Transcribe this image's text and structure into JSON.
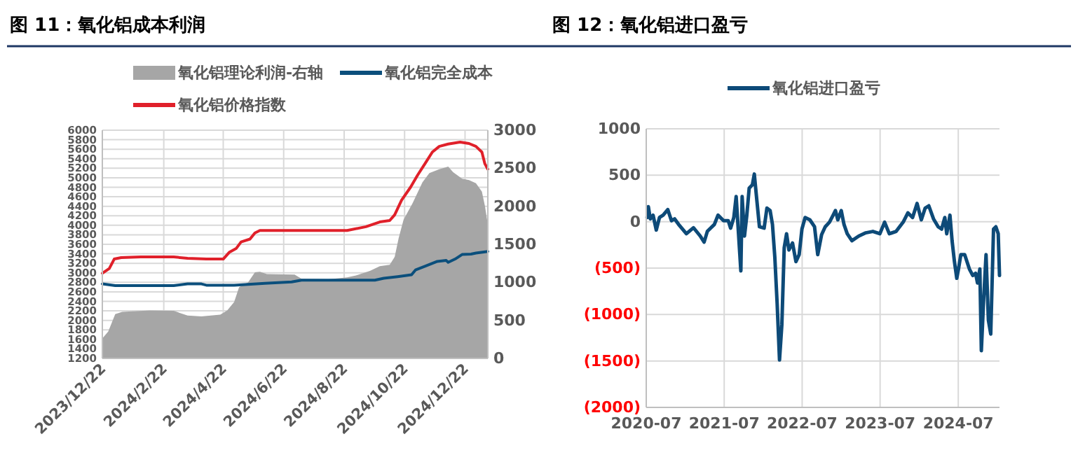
{
  "chart_data": [
    {
      "type": "line",
      "title": "图 11：氧化铝成本利润",
      "legend": "top",
      "grid": true,
      "xlim": [
        "2023-12-22",
        "2025-01-14"
      ],
      "xticks": [
        {
          "value": "2023-12-22",
          "label": "2023/12/22"
        },
        {
          "value": "2024-02-22",
          "label": "2024/2/22"
        },
        {
          "value": "2024-04-22",
          "label": "2024/4/22"
        },
        {
          "value": "2024-06-22",
          "label": "2024/6/22"
        },
        {
          "value": "2024-08-22",
          "label": "2024/8/22"
        },
        {
          "value": "2024-10-22",
          "label": "2024/10/22"
        },
        {
          "value": "2024-12-22",
          "label": "2024/12/22"
        }
      ],
      "ylim": [
        1200,
        6000
      ],
      "yticks": [
        1200,
        1400,
        1600,
        1800,
        2000,
        2200,
        2400,
        2600,
        2800,
        3000,
        3200,
        3400,
        3600,
        3800,
        4000,
        4200,
        4400,
        4600,
        4800,
        5000,
        5200,
        5400,
        5600,
        5800,
        6000
      ],
      "y2lim": [
        0,
        3000
      ],
      "y2ticks": [
        0,
        500,
        1000,
        1500,
        2000,
        2500,
        3000
      ],
      "series": [
        {
          "name": "氧化铝理论利润-右轴",
          "type": "area",
          "axis": "y2",
          "color": "#a6a6a6",
          "x": [
            "2023-12-22",
            "2023-12-28",
            "2024-01-04",
            "2024-01-11",
            "2024-02-08",
            "2024-03-03",
            "2024-03-17",
            "2024-03-31",
            "2024-04-19",
            "2024-04-26",
            "2024-05-03",
            "2024-05-08",
            "2024-05-17",
            "2024-05-24",
            "2024-05-29",
            "2024-06-05",
            "2024-07-03",
            "2024-07-10",
            "2024-08-06",
            "2024-08-25",
            "2024-09-03",
            "2024-09-17",
            "2024-09-27",
            "2024-10-07",
            "2024-10-12",
            "2024-10-16",
            "2024-10-21",
            "2024-10-30",
            "2024-11-09",
            "2024-11-16",
            "2024-11-26",
            "2024-12-05",
            "2024-12-10",
            "2024-12-19",
            "2024-12-26",
            "2025-01-02",
            "2025-01-08",
            "2025-01-11",
            "2025-01-14"
          ],
          "values": [
            263,
            355,
            582,
            612,
            630,
            625,
            563,
            551,
            576,
            630,
            740,
            937,
            998,
            1133,
            1139,
            1108,
            1102,
            1047,
            1041,
            1065,
            1090,
            1151,
            1212,
            1230,
            1335,
            1580,
            1825,
            2039,
            2314,
            2437,
            2486,
            2522,
            2449,
            2363,
            2345,
            2302,
            2192,
            2008,
            1763
          ]
        },
        {
          "name": "氧化铝完全成本",
          "color": "#0b4f7c",
          "x": [
            "2023-12-22",
            "2024-01-04",
            "2024-01-30",
            "2024-03-03",
            "2024-03-17",
            "2024-03-31",
            "2024-04-05",
            "2024-05-03",
            "2024-06-03",
            "2024-06-30",
            "2024-07-10",
            "2024-08-06",
            "2024-09-22",
            "2024-10-01",
            "2024-10-15",
            "2024-10-29",
            "2024-11-02",
            "2024-11-12",
            "2024-11-24",
            "2024-12-03",
            "2024-12-05",
            "2024-12-12",
            "2024-12-19",
            "2024-12-28",
            "2025-01-02",
            "2025-01-14"
          ],
          "values": [
            2767,
            2730,
            2730,
            2730,
            2767,
            2767,
            2740,
            2740,
            2780,
            2810,
            2845,
            2845,
            2845,
            2885,
            2920,
            2960,
            3060,
            3140,
            3240,
            3260,
            3220,
            3290,
            3385,
            3395,
            3415,
            3450
          ]
        },
        {
          "name": "氧化铝价格指数",
          "color": "#e0202a",
          "x": [
            "2023-12-22",
            "2023-12-29",
            "2024-01-03",
            "2024-01-10",
            "2024-01-30",
            "2024-03-03",
            "2024-03-17",
            "2024-04-05",
            "2024-04-22",
            "2024-04-28",
            "2024-05-05",
            "2024-05-10",
            "2024-05-19",
            "2024-05-24",
            "2024-05-29",
            "2024-06-19",
            "2024-08-06",
            "2024-08-25",
            "2024-09-13",
            "2024-09-27",
            "2024-10-07",
            "2024-10-12",
            "2024-10-19",
            "2024-10-28",
            "2024-11-04",
            "2024-11-12",
            "2024-11-19",
            "2024-11-26",
            "2024-12-05",
            "2024-12-17",
            "2024-12-26",
            "2025-01-02",
            "2025-01-08",
            "2025-01-11",
            "2025-01-14"
          ],
          "values": [
            2990,
            3090,
            3290,
            3320,
            3335,
            3335,
            3305,
            3290,
            3290,
            3430,
            3510,
            3650,
            3710,
            3840,
            3890,
            3890,
            3890,
            3890,
            3970,
            4070,
            4100,
            4220,
            4530,
            4800,
            5050,
            5310,
            5540,
            5660,
            5710,
            5750,
            5720,
            5660,
            5540,
            5295,
            5180
          ]
        }
      ]
    },
    {
      "type": "line",
      "title": "图 12：氧化铝进口盈亏",
      "legend": "top",
      "grid": true,
      "xlim": [
        "2020-07-01",
        "2025-01-10"
      ],
      "xticks": [
        {
          "value": "2020-07",
          "label": "2020-07"
        },
        {
          "value": "2021-07",
          "label": "2021-07"
        },
        {
          "value": "2022-07",
          "label": "2022-07"
        },
        {
          "value": "2023-07",
          "label": "2023-07"
        },
        {
          "value": "2024-07",
          "label": "2024-07"
        }
      ],
      "ylim": [
        -2000,
        1000
      ],
      "yticks": [
        {
          "value": -2000,
          "label": "(2000)"
        },
        {
          "value": -1500,
          "label": "(1500)"
        },
        {
          "value": -1000,
          "label": "(1000)"
        },
        {
          "value": -500,
          "label": "(500)"
        },
        0,
        500,
        1000
      ],
      "series": [
        {
          "name": "氧化铝进口盈亏",
          "color": "#0d4a78",
          "x": [
            "2020-07-05",
            "2020-07-11",
            "2020-07-20",
            "2020-08-02",
            "2020-08-17",
            "2020-09-01",
            "2020-09-18",
            "2020-10-10",
            "2020-10-27",
            "2020-11-11",
            "2020-12-03",
            "2021-01-05",
            "2021-02-07",
            "2021-03-11",
            "2021-03-29",
            "2021-04-13",
            "2021-05-16",
            "2021-06-02",
            "2021-06-28",
            "2021-07-20",
            "2021-07-31",
            "2021-08-15",
            "2021-08-26",
            "2021-09-06",
            "2021-09-17",
            "2021-09-23",
            "2021-10-04",
            "2021-10-15",
            "2021-10-26",
            "2021-11-10",
            "2021-11-19",
            "2021-11-28",
            "2021-12-13",
            "2022-01-04",
            "2022-01-17",
            "2022-02-01",
            "2022-02-12",
            "2022-02-23",
            "2022-03-06",
            "2022-03-17",
            "2022-03-28",
            "2022-04-08",
            "2022-04-19",
            "2022-04-30",
            "2022-05-17",
            "2022-06-02",
            "2022-06-17",
            "2022-06-30",
            "2022-07-15",
            "2022-08-06",
            "2022-08-28",
            "2022-09-12",
            "2022-09-30",
            "2022-10-17",
            "2022-11-06",
            "2022-11-23",
            "2022-12-04",
            "2022-12-15",
            "2022-12-31",
            "2023-01-13",
            "2023-01-28",
            "2023-02-19",
            "2023-03-23",
            "2023-04-25",
            "2023-05-28",
            "2023-06-30",
            "2023-07-22",
            "2023-08-13",
            "2023-09-14",
            "2023-10-17",
            "2023-11-08",
            "2023-11-30",
            "2023-12-21",
            "2024-01-10",
            "2024-01-28",
            "2024-02-14",
            "2024-03-07",
            "2024-03-29",
            "2024-04-14",
            "2024-04-29",
            "2024-05-08",
            "2024-05-23",
            "2024-06-02",
            "2024-06-13",
            "2024-06-24",
            "2024-07-02",
            "2024-07-13",
            "2024-07-31",
            "2024-08-22",
            "2024-09-07",
            "2024-09-20",
            "2024-09-29",
            "2024-10-10",
            "2024-10-17",
            "2024-10-28",
            "2024-11-08",
            "2024-11-19",
            "2024-11-30",
            "2024-12-13",
            "2024-12-24",
            "2025-01-04",
            "2025-01-10"
          ],
          "values": [
            45,
            161,
            30,
            70,
            -90,
            45,
            70,
            130,
            10,
            30,
            -40,
            -130,
            -65,
            -155,
            -220,
            -105,
            -30,
            70,
            10,
            10,
            -70,
            45,
            270,
            -130,
            -530,
            270,
            -155,
            70,
            362,
            397,
            513,
            297,
            -55,
            -70,
            146,
            120,
            -30,
            -380,
            -885,
            -1490,
            -1110,
            -280,
            -130,
            -305,
            -230,
            -430,
            -355,
            -80,
            45,
            20,
            -55,
            -355,
            -140,
            -55,
            -5,
            70,
            120,
            20,
            120,
            -30,
            -130,
            -205,
            -155,
            -120,
            -105,
            -130,
            -5,
            -130,
            -105,
            -5,
            95,
            45,
            196,
            20,
            146,
            171,
            30,
            -55,
            -80,
            45,
            -130,
            70,
            -205,
            -430,
            -610,
            -510,
            -355,
            -355,
            -510,
            -580,
            -555,
            -660,
            -510,
            -1390,
            -830,
            -355,
            -1060,
            -1210,
            -80,
            -55,
            -130,
            -580
          ]
        }
      ]
    }
  ]
}
